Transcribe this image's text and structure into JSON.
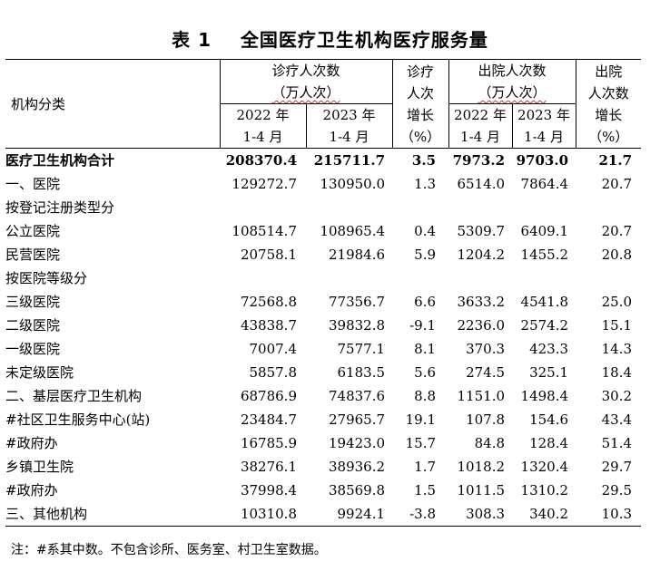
{
  "title": "表 1    全国医疗卫生机构医疗服务量",
  "header": {
    "category": "机构分类",
    "visits_line1": "诊疗人次数",
    "visits_line2": "（万人次）",
    "visits_growth": [
      "诊疗",
      "人次",
      "增长",
      "（%）"
    ],
    "discharge_line1": "出院人次数",
    "discharge_line2": "（万人次）",
    "discharge_growth": [
      "出院",
      "人次数",
      "增长",
      "（%）"
    ],
    "period_2022": [
      "2022 年",
      "1-4 月"
    ],
    "period_2023": [
      "2023 年",
      "1-4 月"
    ]
  },
  "rows": [
    {
      "name": "医疗卫生机构合计",
      "v2022": "208370.4",
      "v2023": "215711.7",
      "vg": "3.5",
      "d2022": "7973.2",
      "d2023": "9703.0",
      "dg": "21.7"
    },
    {
      "name": "一、医院",
      "v2022": "129272.7",
      "v2023": "130950.0",
      "vg": "1.3",
      "d2022": "6514.0",
      "d2023": "7864.4",
      "dg": "20.7"
    },
    {
      "name": "按登记注册类型分",
      "v2022": "",
      "v2023": "",
      "vg": "",
      "d2022": "",
      "d2023": "",
      "dg": ""
    },
    {
      "name": "公立医院",
      "v2022": "108514.7",
      "v2023": "108965.4",
      "vg": "0.4",
      "d2022": "5309.7",
      "d2023": "6409.1",
      "dg": "20.7"
    },
    {
      "name": "民营医院",
      "v2022": "20758.1",
      "v2023": "21984.6",
      "vg": "5.9",
      "d2022": "1204.2",
      "d2023": "1455.2",
      "dg": "20.8"
    },
    {
      "name": "按医院等级分",
      "v2022": "",
      "v2023": "",
      "vg": "",
      "d2022": "",
      "d2023": "",
      "dg": ""
    },
    {
      "name": "三级医院",
      "v2022": "72568.8",
      "v2023": "77356.7",
      "vg": "6.6",
      "d2022": "3633.2",
      "d2023": "4541.8",
      "dg": "25.0"
    },
    {
      "name": "二级医院",
      "v2022": "43838.7",
      "v2023": "39832.8",
      "vg": "-9.1",
      "d2022": "2236.0",
      "d2023": "2574.2",
      "dg": "15.1"
    },
    {
      "name": "一级医院",
      "v2022": "7007.4",
      "v2023": "7577.1",
      "vg": "8.1",
      "d2022": "370.3",
      "d2023": "423.3",
      "dg": "14.3"
    },
    {
      "name": "未定级医院",
      "v2022": "5857.8",
      "v2023": "6183.5",
      "vg": "5.6",
      "d2022": "274.5",
      "d2023": "325.1",
      "dg": "18.4"
    },
    {
      "name": "二、基层医疗卫生机构",
      "v2022": "68786.9",
      "v2023": "74837.6",
      "vg": "8.8",
      "d2022": "1151.0",
      "d2023": "1498.4",
      "dg": "30.2"
    },
    {
      "name": "#社区卫生服务中心(站)",
      "v2022": "23484.7",
      "v2023": "27965.7",
      "vg": "19.1",
      "d2022": "107.8",
      "d2023": "154.6",
      "dg": "43.4"
    },
    {
      "name": "#政府办",
      "v2022": "16785.9",
      "v2023": "19423.0",
      "vg": "15.7",
      "d2022": "84.8",
      "d2023": "128.4",
      "dg": "51.4"
    },
    {
      "name": "乡镇卫生院",
      "v2022": "38276.1",
      "v2023": "38936.2",
      "vg": "1.7",
      "d2022": "1018.2",
      "d2023": "1320.4",
      "dg": "29.7"
    },
    {
      "name": "#政府办",
      "v2022": "37998.4",
      "v2023": "38569.8",
      "vg": "1.5",
      "d2022": "1011.5",
      "d2023": "1310.2",
      "dg": "29.5"
    },
    {
      "name": "三、其他机构",
      "v2022": "10310.8",
      "v2023": "9924.1",
      "vg": "-3.8",
      "d2022": "308.3",
      "d2023": "340.2",
      "dg": "10.3"
    }
  ],
  "note": "注：#系其中数。不包含诊所、医务室、村卫生室数据。"
}
